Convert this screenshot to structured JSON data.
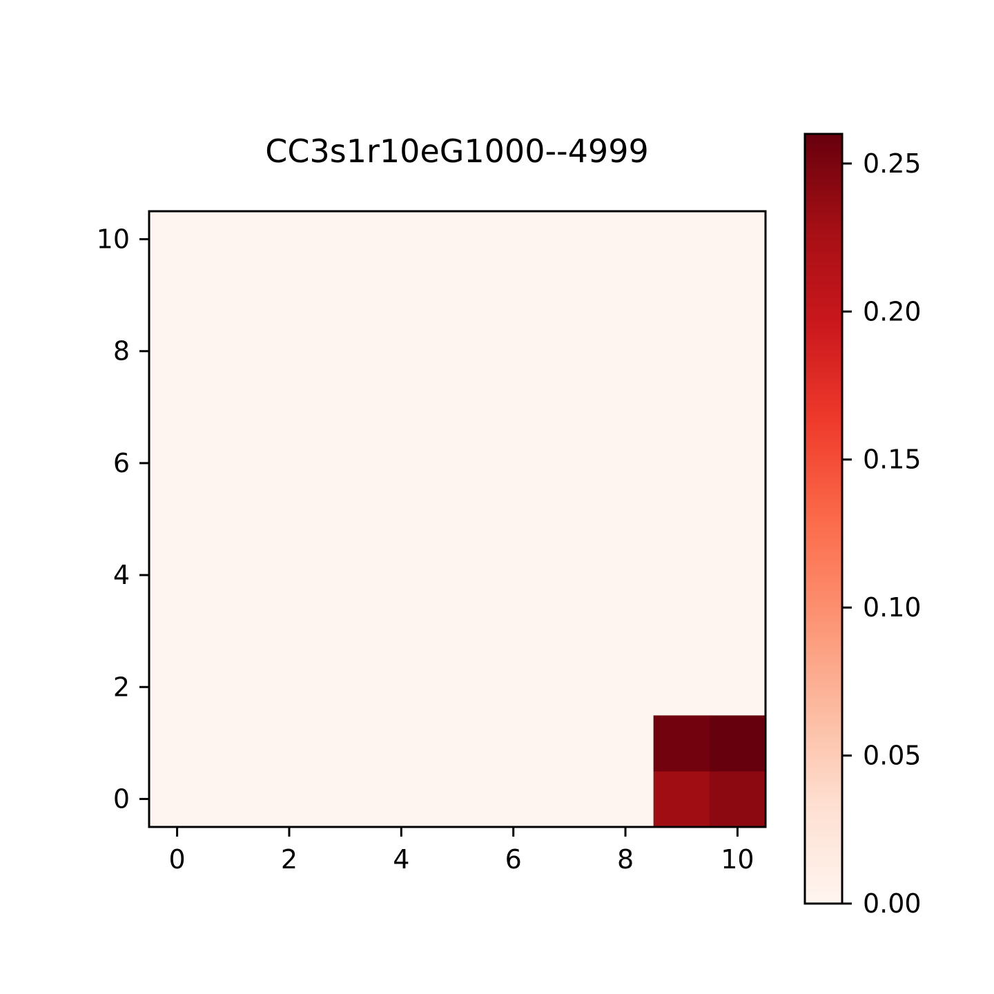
{
  "chart_data": {
    "type": "heatmap",
    "title": "CC3s1r10eG1000--4999",
    "xlabel": "",
    "ylabel": "",
    "x": [
      0,
      1,
      2,
      3,
      4,
      5,
      6,
      7,
      8,
      9,
      10
    ],
    "y": [
      0,
      1,
      2,
      3,
      4,
      5,
      6,
      7,
      8,
      9,
      10
    ],
    "xlim": [
      -0.5,
      10.5
    ],
    "ylim": [
      -0.5,
      10.5
    ],
    "y_origin": "lower",
    "xticks": [
      "0",
      "2",
      "4",
      "6",
      "8",
      "10"
    ],
    "yticks": [
      "0",
      "2",
      "4",
      "6",
      "8",
      "10"
    ],
    "cells": [
      {
        "x": 9,
        "y": 0,
        "value": 0.23
      },
      {
        "x": 10,
        "y": 0,
        "value": 0.24
      },
      {
        "x": 9,
        "y": 1,
        "value": 0.255
      },
      {
        "x": 10,
        "y": 1,
        "value": 0.26
      }
    ],
    "default_value": 0.0,
    "colormap": "Reds",
    "colorbar": {
      "min": 0.0,
      "max": 0.26,
      "ticks": [
        "0.00",
        "0.05",
        "0.10",
        "0.15",
        "0.20",
        "0.25"
      ],
      "placement": "right"
    },
    "grid": false,
    "legend": "none"
  }
}
